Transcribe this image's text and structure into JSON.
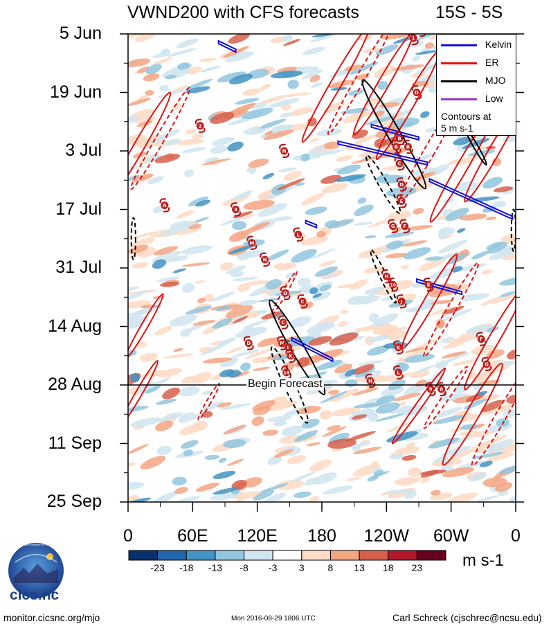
{
  "title_left": "VWND200 with CFS forecasts",
  "title_right": "15S - 5S",
  "chart_data": {
    "type": "heatmap",
    "title": "VWND200 with CFS forecasts",
    "region": "15S - 5S",
    "x_ticks": [
      "0",
      "60E",
      "120E",
      "180",
      "120W",
      "60W",
      "0"
    ],
    "x_tick_lons": [
      0,
      60,
      120,
      180,
      240,
      300,
      360
    ],
    "y_ticks": [
      "5 Jun",
      "19 Jun",
      "3 Jul",
      "17 Jul",
      "31 Jul",
      "14 Aug",
      "28 Aug",
      "11 Sep",
      "25 Sep"
    ],
    "y_tick_days": [
      0,
      14,
      28,
      42,
      56,
      70,
      84,
      98,
      112
    ],
    "xlim": [
      0,
      360
    ],
    "ylim_days": [
      0,
      112
    ],
    "colorbar": {
      "tick_labels": [
        "-23",
        "-18",
        "-13",
        "-8",
        "-3",
        "3",
        "8",
        "13",
        "18",
        "23"
      ],
      "colors": [
        "#08306b",
        "#2166ac",
        "#4393c3",
        "#92c5de",
        "#d1e5f0",
        "#ffffff",
        "#fddbc7",
        "#f4a582",
        "#d6604d",
        "#b2182b",
        "#67001f"
      ],
      "units": "m s-1"
    },
    "begin_forecast_day": 84,
    "begin_forecast_label": "Begin Forecast",
    "legend": {
      "entries": [
        {
          "label": "Kelvin",
          "color": "#1010e0"
        },
        {
          "label": "ER",
          "color": "#e01010"
        },
        {
          "label": "MJO",
          "color": "#000000"
        },
        {
          "label": "Low",
          "color": "#9933cc"
        }
      ],
      "note_line1": "Contours at",
      "note_line2": "5 m s-1"
    },
    "mjo_contours": [
      {
        "lon": 157,
        "day": 75,
        "rx": 6,
        "ry": 13,
        "rot": -30,
        "dashed": false
      },
      {
        "lon": 247,
        "day": 24,
        "rx": 6,
        "ry": 15,
        "rot": -30,
        "dashed": false
      },
      {
        "lon": 323,
        "day": 27,
        "rx": 2,
        "ry": 5,
        "rot": -30,
        "dashed": false
      },
      {
        "lon": 150,
        "day": 84,
        "rx": 5,
        "ry": 10,
        "rot": -25,
        "dashed": true
      },
      {
        "lon": 237,
        "day": 36,
        "rx": 4,
        "ry": 8,
        "rot": -30,
        "dashed": true
      },
      {
        "lon": 237,
        "day": 58,
        "rx": 3,
        "ry": 7,
        "rot": -25,
        "dashed": true
      },
      {
        "lon": 5,
        "day": 49,
        "rx": 2,
        "ry": 5,
        "rot": 0,
        "dashed": true
      },
      {
        "lon": 358,
        "day": 47,
        "rx": 2,
        "ry": 5,
        "rot": 0,
        "dashed": true
      }
    ],
    "kelvin_contours": [
      {
        "points": [
          [
            195,
            26
          ],
          [
            278,
            31
          ]
        ]
      },
      {
        "points": [
          [
            226,
            22
          ],
          [
            270,
            25
          ]
        ]
      },
      {
        "points": [
          [
            280,
            35
          ],
          [
            357,
            44
          ]
        ]
      },
      {
        "points": [
          [
            152,
            73
          ],
          [
            190,
            78
          ]
        ]
      },
      {
        "points": [
          [
            268,
            59
          ],
          [
            310,
            62
          ]
        ]
      },
      {
        "points": [
          [
            84,
            2
          ],
          [
            100,
            4
          ]
        ]
      },
      {
        "points": [
          [
            165,
            45
          ],
          [
            175,
            46
          ]
        ]
      }
    ],
    "er_contours": [
      {
        "lon": 193,
        "day": 12,
        "rx": 5,
        "ry": 16,
        "rot": 30,
        "dashed": false
      },
      {
        "lon": 215,
        "day": 11,
        "rx": 4,
        "ry": 15,
        "rot": 30,
        "dashed": true
      },
      {
        "lon": 237,
        "day": 12,
        "rx": 5,
        "ry": 14,
        "rot": 30,
        "dashed": false
      },
      {
        "lon": 260,
        "day": 17,
        "rx": 5,
        "ry": 15,
        "rot": 30,
        "dashed": false
      },
      {
        "lon": 280,
        "day": 28,
        "rx": 5,
        "ry": 14,
        "rot": 30,
        "dashed": true
      },
      {
        "lon": 310,
        "day": 32,
        "rx": 5,
        "ry": 15,
        "rot": 30,
        "dashed": false
      },
      {
        "lon": 340,
        "day": 28,
        "rx": 5,
        "ry": 14,
        "rot": 30,
        "dashed": false
      },
      {
        "lon": 10,
        "day": 27,
        "rx": 5,
        "ry": 15,
        "rot": 30,
        "dashed": false
      },
      {
        "lon": 30,
        "day": 25,
        "rx": 4,
        "ry": 14,
        "rot": 30,
        "dashed": true
      },
      {
        "lon": 280,
        "day": 64,
        "rx": 5,
        "ry": 13,
        "rot": 30,
        "dashed": false
      },
      {
        "lon": 300,
        "day": 66,
        "rx": 4,
        "ry": 13,
        "rot": 30,
        "dashed": true
      },
      {
        "lon": 340,
        "day": 73,
        "rx": 5,
        "ry": 14,
        "rot": 30,
        "dashed": false
      },
      {
        "lon": 320,
        "day": 91,
        "rx": 6,
        "ry": 14,
        "rot": 30,
        "dashed": false
      },
      {
        "lon": 345,
        "day": 92,
        "rx": 5,
        "ry": 13,
        "rot": 30,
        "dashed": true
      },
      {
        "lon": 15,
        "day": 70,
        "rx": 3,
        "ry": 9,
        "rot": 30,
        "dashed": false
      },
      {
        "lon": 10,
        "day": 86,
        "rx": 3,
        "ry": 9,
        "rot": 30,
        "dashed": false
      },
      {
        "lon": 75,
        "day": 88,
        "rx": 2,
        "ry": 5,
        "rot": 30,
        "dashed": true
      },
      {
        "lon": 145,
        "day": 62,
        "rx": 2,
        "ry": 6,
        "rot": 30,
        "dashed": true
      },
      {
        "lon": 270,
        "day": 89,
        "rx": 3,
        "ry": 11,
        "rot": 35,
        "dashed": false
      },
      {
        "lon": 295,
        "day": 87,
        "rx": 3,
        "ry": 9,
        "rot": 35,
        "dashed": true
      }
    ],
    "storm_markers": [
      {
        "lon": 265,
        "day": 1,
        "label": "1"
      },
      {
        "lon": 272,
        "day": -1,
        "label": "C"
      },
      {
        "lon": 67,
        "day": 22,
        "label": "2"
      },
      {
        "lon": 145,
        "day": 28,
        "label": "N"
      },
      {
        "lon": 268,
        "day": 14,
        "label": "D"
      },
      {
        "lon": 249,
        "day": 27,
        "label": "B"
      },
      {
        "lon": 260,
        "day": 27,
        "label": "B"
      },
      {
        "lon": 252,
        "day": 25,
        "label": "B"
      },
      {
        "lon": 252,
        "day": 31,
        "label": "C"
      },
      {
        "lon": 254,
        "day": 36,
        "label": "D"
      },
      {
        "lon": 254,
        "day": 40,
        "label": "E"
      },
      {
        "lon": 34,
        "day": 41,
        "label": "A"
      },
      {
        "lon": 100,
        "day": 42,
        "label": "3"
      },
      {
        "lon": 158,
        "day": 48,
        "label": "L"
      },
      {
        "lon": 246,
        "day": 46,
        "label": "G"
      },
      {
        "lon": 257,
        "day": 46,
        "label": "F"
      },
      {
        "lon": 115,
        "day": 50,
        "label": "M"
      },
      {
        "lon": 127,
        "day": 54,
        "label": "N"
      },
      {
        "lon": 240,
        "day": 58,
        "label": "H"
      },
      {
        "lon": 246,
        "day": 60,
        "label": "10"
      },
      {
        "lon": 279,
        "day": 60,
        "label": "E"
      },
      {
        "lon": 254,
        "day": 64,
        "label": "J"
      },
      {
        "lon": 146,
        "day": 62,
        "label": "O"
      },
      {
        "lon": 162,
        "day": 64,
        "label": "C"
      },
      {
        "lon": 144,
        "day": 69,
        "label": "C"
      },
      {
        "lon": 112,
        "day": 74,
        "label": "D"
      },
      {
        "lon": 143,
        "day": 74,
        "label": "M"
      },
      {
        "lon": 149,
        "day": 75,
        "label": "L"
      },
      {
        "lon": 151,
        "day": 77,
        "label": "K"
      },
      {
        "lon": 147,
        "day": 81,
        "label": "14"
      },
      {
        "lon": 251,
        "day": 75,
        "label": "K"
      },
      {
        "lon": 328,
        "day": 73,
        "label": "F"
      },
      {
        "lon": 333,
        "day": 79,
        "label": "G"
      },
      {
        "lon": 251,
        "day": 81,
        "label": "L"
      },
      {
        "lon": 225,
        "day": 83,
        "label": "N"
      },
      {
        "lon": 281,
        "day": 85,
        "label": "9"
      },
      {
        "lon": 291,
        "day": 85,
        "label": "8"
      }
    ]
  },
  "footer": {
    "left": "monitor.cicsnc.org/mjo",
    "center": "Mon 2016-08-29 1806 UTC",
    "right": "Carl Schreck (cjschrec@ncsu.edu)",
    "logo_text": "cics.nc",
    "logo_ring_text": "Cooperative Institute for Climate and Satellites"
  }
}
